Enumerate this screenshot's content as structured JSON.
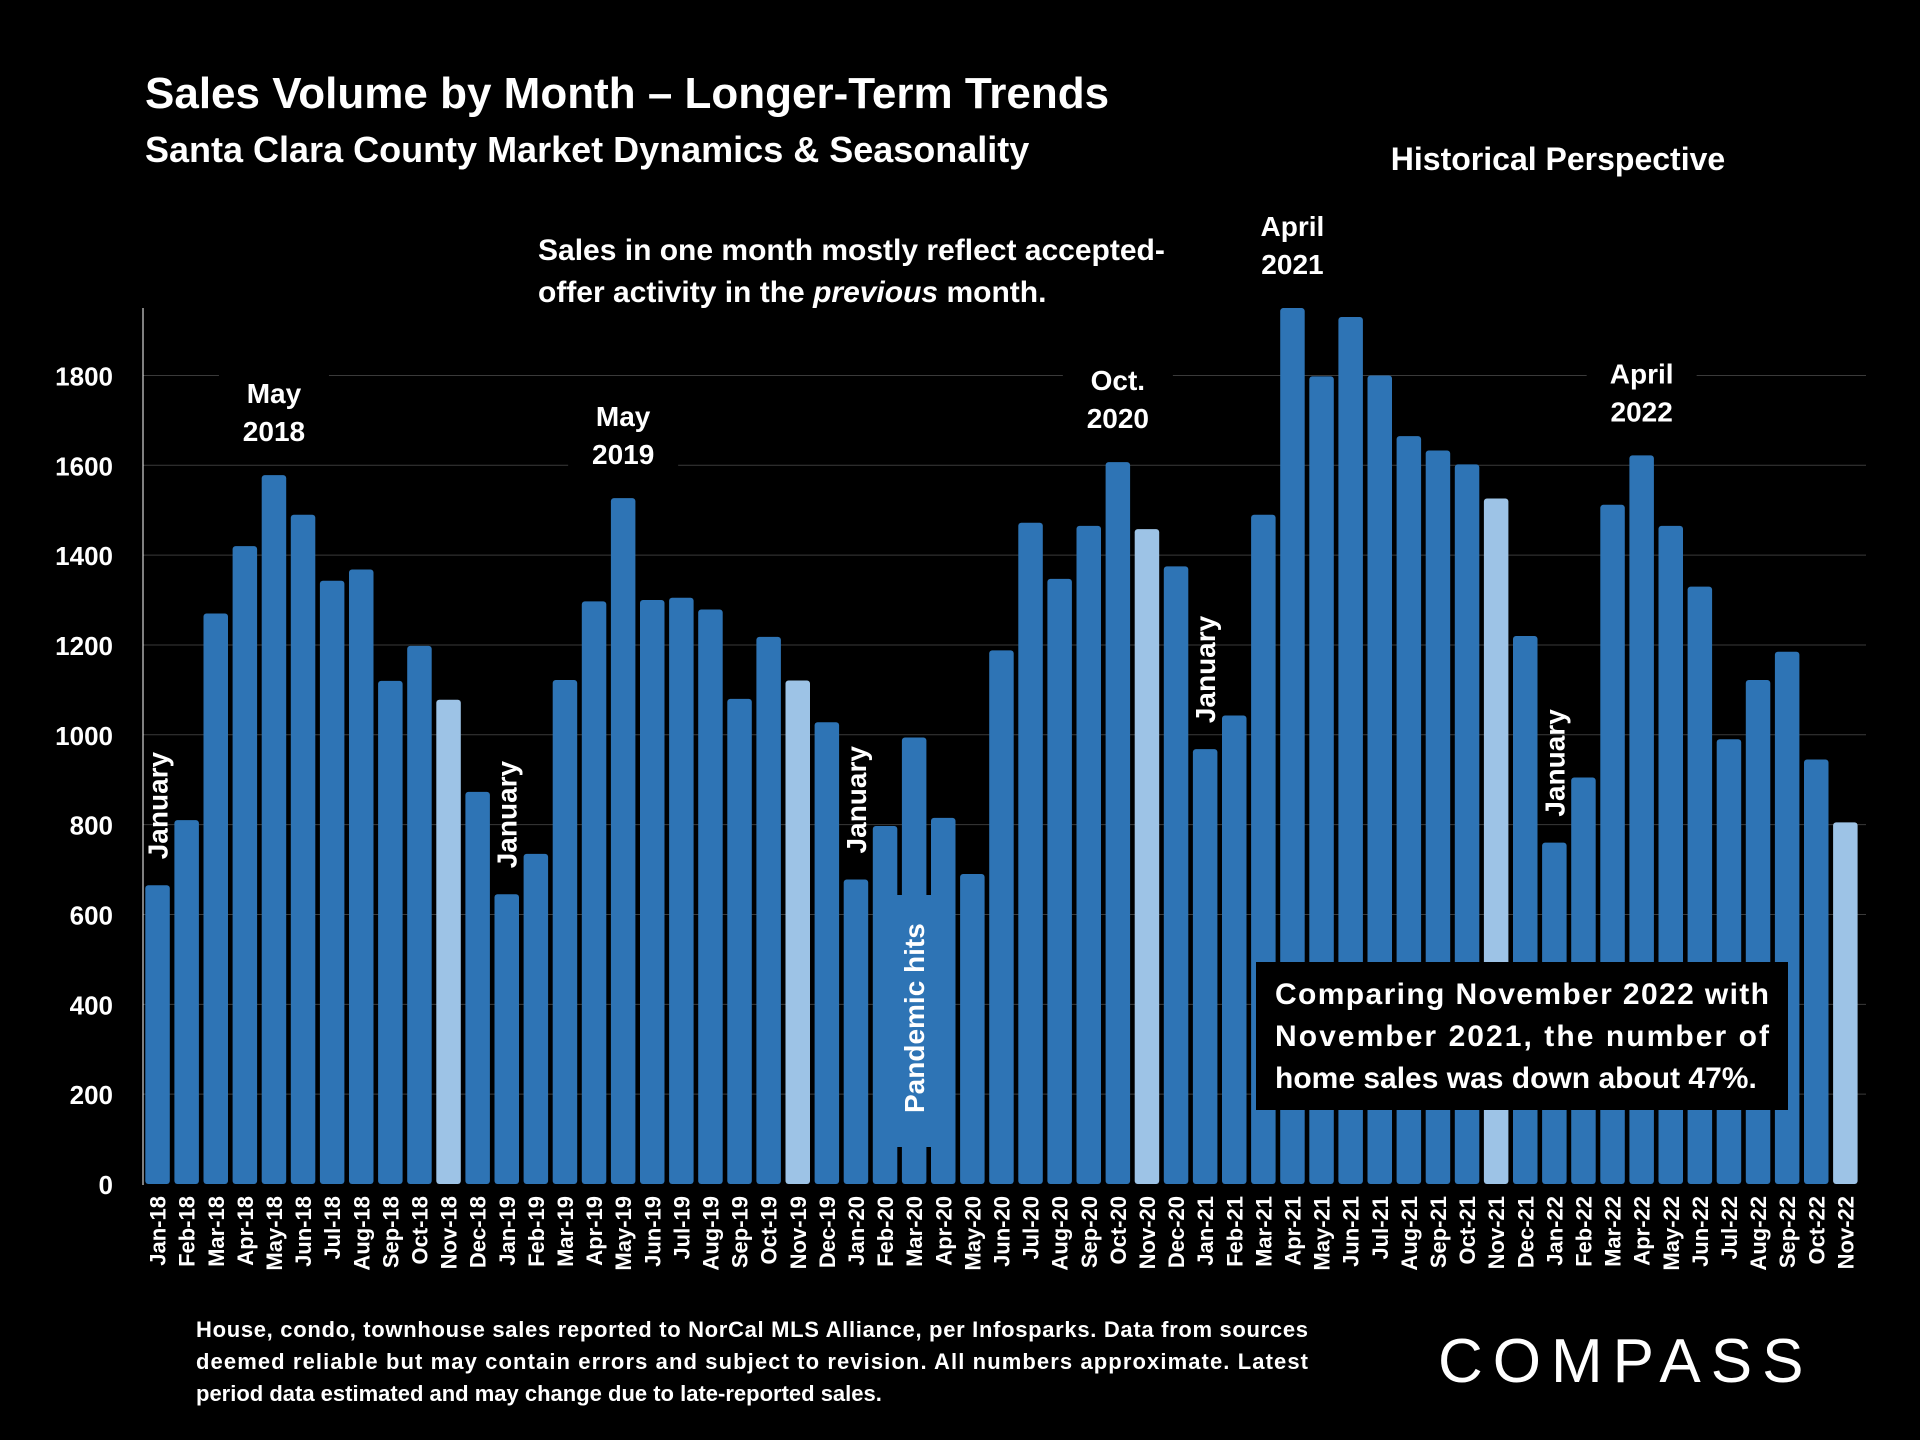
{
  "header": {
    "title": "Sales Volume by Month – Longer-Term Trends",
    "subtitle": "Santa Clara County Market Dynamics & Seasonality",
    "perspective": "Historical Perspective"
  },
  "note": {
    "line1": "Sales in one month mostly reflect accepted-",
    "line2_prefix": "offer activity in the ",
    "line2_emph": "previous",
    "line2_suffix": " month."
  },
  "comparison": {
    "line1": "Comparing November 2022 with",
    "line2": "November 2021, the number of",
    "line3": "home sales was down about 47%."
  },
  "footer": {
    "line1": "House, condo, townhouse sales reported to NorCal MLS Alliance, per Infosparks. Data from sources",
    "line2": "deemed reliable but may contain errors and subject to revision. All numbers approximate. Latest",
    "line3": "period data estimated and may change due to late-reported sales."
  },
  "logo": {
    "text": "COMPASS"
  },
  "colors": {
    "bar": "#2e74b5",
    "bar_highlight": "#9dc3e6",
    "background": "#000000",
    "grid": "#3a3a3a"
  },
  "chart_data": {
    "type": "bar",
    "ylim": [
      0,
      1950
    ],
    "yticks": [
      0,
      200,
      400,
      600,
      800,
      1000,
      1200,
      1400,
      1600,
      1800
    ],
    "categories": [
      "Jan-18",
      "Feb-18",
      "Mar-18",
      "Apr-18",
      "May-18",
      "Jun-18",
      "Jul-18",
      "Aug-18",
      "Sep-18",
      "Oct-18",
      "Nov-18",
      "Dec-18",
      "Jan-19",
      "Feb-19",
      "Mar-19",
      "Apr-19",
      "May-19",
      "Jun-19",
      "Jul-19",
      "Aug-19",
      "Sep-19",
      "Oct-19",
      "Nov-19",
      "Dec-19",
      "Jan-20",
      "Feb-20",
      "Mar-20",
      "Apr-20",
      "May-20",
      "Jun-20",
      "Jul-20",
      "Aug-20",
      "Sep-20",
      "Oct-20",
      "Nov-20",
      "Dec-20",
      "Jan-21",
      "Feb-21",
      "Mar-21",
      "Apr-21",
      "May-21",
      "Jun-21",
      "Jul-21",
      "Aug-21",
      "Sep-21",
      "Oct-21",
      "Nov-21",
      "Dec-21",
      "Jan-22",
      "Feb-22",
      "Mar-22",
      "Apr-22",
      "May-22",
      "Jun-22",
      "Jul-22",
      "Aug-22",
      "Sep-22",
      "Oct-22",
      "Nov-22"
    ],
    "values": [
      665,
      810,
      1270,
      1420,
      1578,
      1490,
      1343,
      1368,
      1120,
      1198,
      1078,
      873,
      645,
      735,
      1122,
      1297,
      1527,
      1300,
      1305,
      1279,
      1080,
      1218,
      1121,
      1028,
      678,
      797,
      994,
      815,
      690,
      1188,
      1472,
      1347,
      1465,
      1607,
      1458,
      1375,
      968,
      1043,
      1490,
      1950,
      1798,
      1930,
      1800,
      1665,
      1633,
      1602,
      1526,
      1220,
      760,
      905,
      1512,
      1622,
      1465,
      1330,
      990,
      1122,
      1185,
      945,
      805
    ],
    "highlighted": [
      10,
      22,
      34,
      46,
      58
    ],
    "annotations": [
      {
        "text": "January",
        "index": 0,
        "orientation": "vertical"
      },
      {
        "text": "January",
        "index": 12,
        "orientation": "vertical"
      },
      {
        "text": "January",
        "index": 24,
        "orientation": "vertical"
      },
      {
        "text": "January",
        "index": 36,
        "orientation": "vertical"
      },
      {
        "text": "January",
        "index": 48,
        "orientation": "vertical"
      },
      {
        "text": "Pandemic hits",
        "index": 26,
        "orientation": "vertical"
      },
      {
        "lines": [
          "May",
          "2018"
        ],
        "index": 4,
        "orientation": "horizontal"
      },
      {
        "lines": [
          "May",
          "2019"
        ],
        "index": 16,
        "orientation": "horizontal"
      },
      {
        "lines": [
          "Oct.",
          "2020"
        ],
        "index": 33,
        "orientation": "horizontal"
      },
      {
        "lines": [
          "April",
          "2021"
        ],
        "index": 39,
        "orientation": "horizontal"
      },
      {
        "lines": [
          "April",
          "2022"
        ],
        "index": 51,
        "orientation": "horizontal"
      }
    ]
  }
}
